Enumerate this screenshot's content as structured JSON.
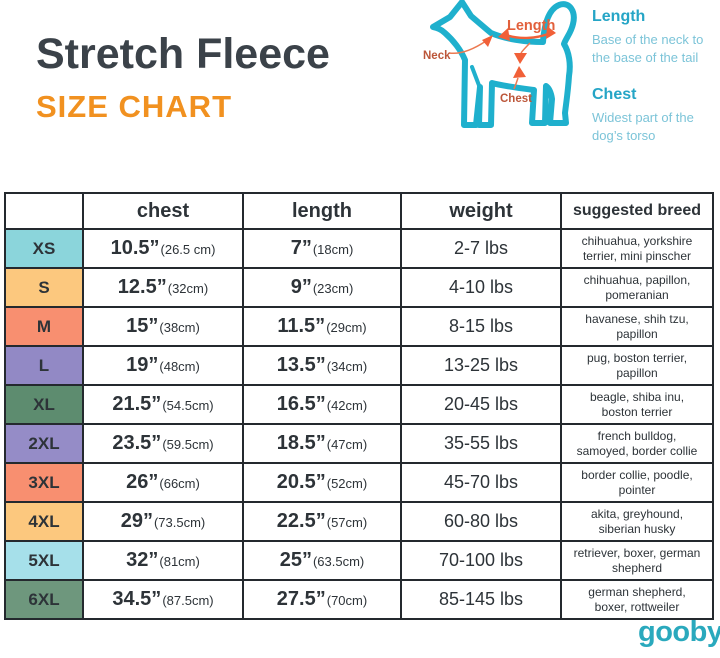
{
  "header": {
    "title": "Stretch Fleece",
    "subtitle": "SIZE CHART"
  },
  "diagram": {
    "labels": {
      "neck": "Neck",
      "length": "Length",
      "chest": "Chest"
    },
    "legend": [
      {
        "title": "Length",
        "description": "Base of the neck to the base of the tail"
      },
      {
        "title": "Chest",
        "description": "Widest part of the dog’s torso"
      }
    ]
  },
  "table": {
    "columns": [
      "",
      "chest",
      "length",
      "weight",
      "suggested breed"
    ],
    "rows": [
      {
        "size": "XS",
        "color": "#8bd5db",
        "chest_in": "10.5”",
        "chest_cm": "(26.5 cm)",
        "length_in": "7”",
        "length_cm": "(18cm)",
        "weight": "2-7 lbs",
        "breed": "chihuahua, yorkshire terrier, mini pinscher"
      },
      {
        "size": "S",
        "color": "#fcc87e",
        "chest_in": "12.5”",
        "chest_cm": "(32cm)",
        "length_in": "9”",
        "length_cm": "(23cm)",
        "weight": "4-10 lbs",
        "breed": "chihuahua, papillon, pomeranian"
      },
      {
        "size": "M",
        "color": "#f88f70",
        "chest_in": "15”",
        "chest_cm": "(38cm)",
        "length_in": "11.5”",
        "length_cm": "(29cm)",
        "weight": "8-15 lbs",
        "breed": "havanese, shih tzu, papillon"
      },
      {
        "size": "L",
        "color": "#9289c5",
        "chest_in": "19”",
        "chest_cm": "(48cm)",
        "length_in": "13.5”",
        "length_cm": "(34cm)",
        "weight": "13-25 lbs",
        "breed": "pug, boston terrier, papillon"
      },
      {
        "size": "XL",
        "color": "#5d8c6f",
        "chest_in": "21.5”",
        "chest_cm": "(54.5cm)",
        "length_in": "16.5”",
        "length_cm": "(42cm)",
        "weight": "20-45 lbs",
        "breed": "beagle, shiba inu, boston terrier"
      },
      {
        "size": "2XL",
        "color": "#958cc7",
        "chest_in": "23.5”",
        "chest_cm": "(59.5cm)",
        "length_in": "18.5”",
        "length_cm": "(47cm)",
        "weight": "35-55 lbs",
        "breed": "french bulldog, samoyed, border collie"
      },
      {
        "size": "3XL",
        "color": "#f88f70",
        "chest_in": "26”",
        "chest_cm": "(66cm)",
        "length_in": "20.5”",
        "length_cm": "(52cm)",
        "weight": "45-70 lbs",
        "breed": "border collie, poodle, pointer"
      },
      {
        "size": "4XL",
        "color": "#fcc87e",
        "chest_in": "29”",
        "chest_cm": "(73.5cm)",
        "length_in": "22.5”",
        "length_cm": "(57cm)",
        "weight": "60-80 lbs",
        "breed": "akita, greyhound, siberian husky"
      },
      {
        "size": "5XL",
        "color": "#a6e0ea",
        "chest_in": "32”",
        "chest_cm": "(81cm)",
        "length_in": "25”",
        "length_cm": "(63.5cm)",
        "weight": "70-100 lbs",
        "breed": "retriever, boxer, german shepherd"
      },
      {
        "size": "6XL",
        "color": "#6e977d",
        "chest_in": "34.5”",
        "chest_cm": "(87.5cm)",
        "length_in": "27.5”",
        "length_cm": "(70cm)",
        "weight": "85-145 lbs",
        "breed": "german shepherd, boxer, rottweiler"
      }
    ]
  },
  "footer": {
    "logo": "gooby",
    "registered": "®"
  },
  "colors": {
    "accent_orange": "#f19120",
    "brand_teal": "#2aa9bd",
    "dog_outline_teal": "#1fb0cd",
    "annotation_orange": "#f16038",
    "table_border": "#24292e",
    "text_dark": "#2d3338"
  }
}
